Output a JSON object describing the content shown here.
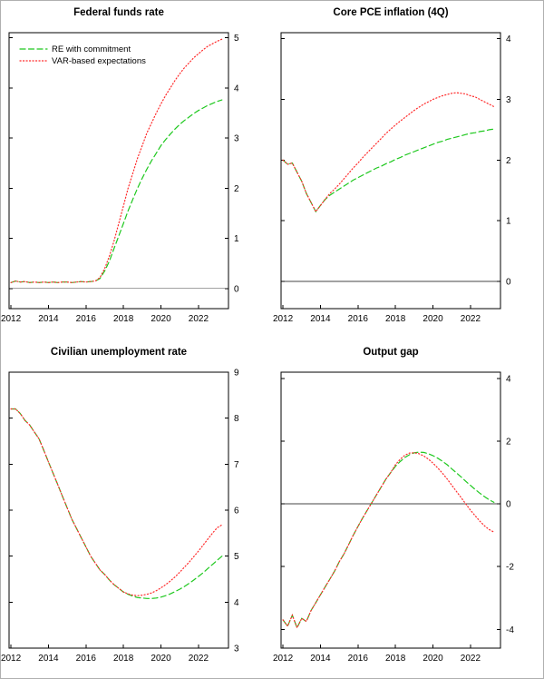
{
  "figure": {
    "background": "#ffffff",
    "axis_color": "#000000",
    "zero_line_color": "#444444"
  },
  "legend": {
    "re_label": "RE with commitment",
    "var_label": "VAR-based expectations"
  },
  "chart_data": [
    {
      "type": "line",
      "title": "Federal funds rate",
      "xlim": [
        2011.9,
        2023.6
      ],
      "xticks": [
        2012,
        2014,
        2016,
        2018,
        2020,
        2022
      ],
      "ylim": [
        -0.4,
        5.1
      ],
      "yticks": [
        0,
        1,
        2,
        3,
        4,
        5
      ],
      "y_axis_side": "right",
      "grid": false,
      "zero_line": true,
      "legend": true,
      "legend_position": "top-left",
      "series": [
        {
          "name": "RE with commitment",
          "color": "#1ec81e",
          "style": "dashed",
          "x0": 2012,
          "dx": 0.25,
          "y": [
            0.12,
            0.15,
            0.13,
            0.14,
            0.12,
            0.13,
            0.12,
            0.13,
            0.12,
            0.13,
            0.12,
            0.13,
            0.13,
            0.12,
            0.13,
            0.14,
            0.13,
            0.14,
            0.15,
            0.2,
            0.35,
            0.55,
            0.8,
            1.05,
            1.3,
            1.55,
            1.78,
            2.0,
            2.2,
            2.38,
            2.55,
            2.7,
            2.85,
            2.97,
            3.08,
            3.18,
            3.27,
            3.35,
            3.42,
            3.49,
            3.55,
            3.6,
            3.65,
            3.69,
            3.73,
            3.76
          ]
        },
        {
          "name": "VAR-based expectations",
          "color": "#ff2a2a",
          "style": "dotted",
          "x0": 2012,
          "dx": 0.25,
          "y": [
            0.12,
            0.15,
            0.13,
            0.14,
            0.12,
            0.13,
            0.12,
            0.13,
            0.12,
            0.13,
            0.12,
            0.13,
            0.13,
            0.12,
            0.13,
            0.14,
            0.13,
            0.14,
            0.15,
            0.22,
            0.4,
            0.65,
            0.95,
            1.3,
            1.65,
            2.0,
            2.3,
            2.6,
            2.85,
            3.1,
            3.3,
            3.5,
            3.68,
            3.85,
            4.0,
            4.15,
            4.28,
            4.4,
            4.5,
            4.6,
            4.68,
            4.76,
            4.83,
            4.88,
            4.93,
            4.97
          ]
        }
      ]
    },
    {
      "type": "line",
      "title": "Core PCE inflation (4Q)",
      "xlim": [
        2011.9,
        2023.6
      ],
      "xticks": [
        2012,
        2014,
        2016,
        2018,
        2020,
        2022
      ],
      "ylim": [
        -0.45,
        4.1
      ],
      "yticks": [
        0,
        1,
        2,
        3,
        4
      ],
      "y_axis_side": "right",
      "grid": false,
      "zero_line": true,
      "legend": false,
      "series": [
        {
          "name": "RE with commitment",
          "color": "#1ec81e",
          "style": "dashed",
          "x0": 2012,
          "dx": 0.25,
          "y": [
            2.0,
            1.93,
            1.95,
            1.8,
            1.65,
            1.45,
            1.3,
            1.15,
            1.25,
            1.35,
            1.42,
            1.47,
            1.52,
            1.57,
            1.62,
            1.67,
            1.71,
            1.75,
            1.79,
            1.83,
            1.87,
            1.9,
            1.94,
            1.97,
            2.01,
            2.04,
            2.08,
            2.11,
            2.14,
            2.17,
            2.2,
            2.23,
            2.26,
            2.29,
            2.31,
            2.34,
            2.36,
            2.38,
            2.4,
            2.42,
            2.44,
            2.45,
            2.47,
            2.48,
            2.5,
            2.51
          ]
        },
        {
          "name": "VAR-based expectations",
          "color": "#ff2a2a",
          "style": "dotted",
          "x0": 2012,
          "dx": 0.25,
          "y": [
            2.0,
            1.93,
            1.95,
            1.8,
            1.65,
            1.45,
            1.3,
            1.15,
            1.25,
            1.35,
            1.45,
            1.52,
            1.6,
            1.69,
            1.78,
            1.87,
            1.95,
            2.04,
            2.12,
            2.2,
            2.28,
            2.36,
            2.44,
            2.51,
            2.58,
            2.64,
            2.7,
            2.76,
            2.82,
            2.87,
            2.92,
            2.96,
            3.0,
            3.03,
            3.06,
            3.08,
            3.1,
            3.11,
            3.1,
            3.09,
            3.06,
            3.04,
            3.0,
            2.96,
            2.92,
            2.88
          ]
        }
      ]
    },
    {
      "type": "line",
      "title": "Civilian unemployment rate",
      "xlim": [
        2011.9,
        2023.6
      ],
      "xticks": [
        2012,
        2014,
        2016,
        2018,
        2020,
        2022
      ],
      "ylim": [
        3,
        9
      ],
      "yticks": [
        3,
        4,
        5,
        6,
        7,
        8,
        9
      ],
      "y_axis_side": "right",
      "grid": false,
      "zero_line": false,
      "legend": false,
      "series": [
        {
          "name": "RE with commitment",
          "color": "#1ec81e",
          "style": "dashed",
          "x0": 2012,
          "dx": 0.25,
          "y": [
            8.2,
            8.2,
            8.1,
            7.95,
            7.85,
            7.7,
            7.55,
            7.3,
            7.05,
            6.8,
            6.55,
            6.3,
            6.05,
            5.8,
            5.6,
            5.4,
            5.2,
            5.0,
            4.85,
            4.7,
            4.6,
            4.48,
            4.38,
            4.3,
            4.22,
            4.17,
            4.13,
            4.1,
            4.09,
            4.08,
            4.08,
            4.09,
            4.11,
            4.14,
            4.18,
            4.23,
            4.28,
            4.34,
            4.41,
            4.48,
            4.56,
            4.64,
            4.73,
            4.82,
            4.91,
            5.0
          ]
        },
        {
          "name": "VAR-based expectations",
          "color": "#ff2a2a",
          "style": "dotted",
          "x0": 2012,
          "dx": 0.25,
          "y": [
            8.2,
            8.2,
            8.1,
            7.95,
            7.85,
            7.7,
            7.55,
            7.3,
            7.05,
            6.8,
            6.55,
            6.3,
            6.05,
            5.8,
            5.6,
            5.4,
            5.2,
            5.0,
            4.85,
            4.7,
            4.6,
            4.48,
            4.38,
            4.3,
            4.22,
            4.18,
            4.15,
            4.14,
            4.15,
            4.17,
            4.2,
            4.25,
            4.31,
            4.38,
            4.46,
            4.55,
            4.65,
            4.76,
            4.87,
            4.99,
            5.11,
            5.24,
            5.37,
            5.5,
            5.62,
            5.68
          ]
        }
      ]
    },
    {
      "type": "line",
      "title": "Output gap",
      "xlim": [
        2011.9,
        2023.6
      ],
      "xticks": [
        2012,
        2014,
        2016,
        2018,
        2020,
        2022
      ],
      "ylim": [
        -4.6,
        4.2
      ],
      "yticks": [
        -4,
        -2,
        0,
        2,
        4
      ],
      "y_axis_side": "right",
      "grid": false,
      "zero_line": true,
      "legend": false,
      "series": [
        {
          "name": "RE with commitment",
          "color": "#1ec81e",
          "style": "dashed",
          "x0": 2012,
          "dx": 0.25,
          "y": [
            -3.7,
            -3.9,
            -3.55,
            -3.95,
            -3.65,
            -3.75,
            -3.4,
            -3.15,
            -2.9,
            -2.65,
            -2.4,
            -2.15,
            -1.85,
            -1.6,
            -1.3,
            -1.0,
            -0.72,
            -0.45,
            -0.2,
            0.05,
            0.3,
            0.55,
            0.8,
            1.0,
            1.2,
            1.35,
            1.48,
            1.57,
            1.63,
            1.65,
            1.64,
            1.6,
            1.54,
            1.46,
            1.36,
            1.25,
            1.12,
            0.99,
            0.86,
            0.72,
            0.59,
            0.46,
            0.34,
            0.23,
            0.13,
            0.05
          ]
        },
        {
          "name": "VAR-based expectations",
          "color": "#ff2a2a",
          "style": "dotted",
          "x0": 2012,
          "dx": 0.25,
          "y": [
            -3.7,
            -3.9,
            -3.55,
            -3.95,
            -3.65,
            -3.75,
            -3.4,
            -3.15,
            -2.9,
            -2.65,
            -2.4,
            -2.15,
            -1.85,
            -1.6,
            -1.3,
            -1.0,
            -0.72,
            -0.45,
            -0.2,
            0.05,
            0.3,
            0.55,
            0.8,
            1.0,
            1.25,
            1.42,
            1.55,
            1.62,
            1.63,
            1.6,
            1.53,
            1.43,
            1.3,
            1.15,
            0.98,
            0.8,
            0.6,
            0.4,
            0.2,
            0.0,
            -0.2,
            -0.38,
            -0.55,
            -0.7,
            -0.82,
            -0.9
          ]
        }
      ]
    }
  ]
}
